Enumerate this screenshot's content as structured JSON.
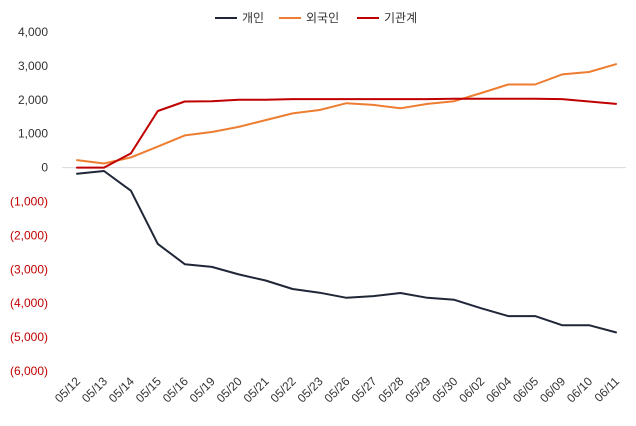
{
  "chart_data": {
    "type": "line",
    "title": "",
    "xlabel": "",
    "ylabel": "",
    "ylim": [
      -6000,
      4000
    ],
    "ytick_step": 1000,
    "y_ticks": [
      {
        "value": 4000,
        "label": "4,000"
      },
      {
        "value": 3000,
        "label": "3,000"
      },
      {
        "value": 2000,
        "label": "2,000"
      },
      {
        "value": 1000,
        "label": "1,000"
      },
      {
        "value": 0,
        "label": "0"
      },
      {
        "value": -1000,
        "label": "(1,000)"
      },
      {
        "value": -2000,
        "label": "(2,000)"
      },
      {
        "value": -3000,
        "label": "(3,000)"
      },
      {
        "value": -4000,
        "label": "(4,000)"
      },
      {
        "value": -5000,
        "label": "(5,000)"
      },
      {
        "value": -6000,
        "label": "(6,000)"
      }
    ],
    "negative_label_color": "#c00000",
    "grid": false,
    "legend_position": "top-center",
    "categories": [
      "05/12",
      "05/13",
      "05/14",
      "05/15",
      "05/16",
      "05/19",
      "05/20",
      "05/21",
      "05/22",
      "05/23",
      "05/26",
      "05/27",
      "05/28",
      "05/29",
      "05/30",
      "06/02",
      "06/04",
      "06/05",
      "06/09",
      "06/10",
      "06/11"
    ],
    "series": [
      {
        "name": "개인",
        "color": "#1f2637",
        "values": [
          -180,
          -100,
          -680,
          -2250,
          -2850,
          -2930,
          -3150,
          -3330,
          -3580,
          -3690,
          -3840,
          -3790,
          -3700,
          -3840,
          -3900,
          -4150,
          -4380,
          -4380,
          -4650,
          -4650,
          -4860
        ]
      },
      {
        "name": "외국인",
        "color": "#ed7d31",
        "values": [
          220,
          120,
          300,
          620,
          950,
          1050,
          1200,
          1400,
          1600,
          1700,
          1900,
          1850,
          1750,
          1880,
          1960,
          2200,
          2450,
          2450,
          2750,
          2820,
          3050
        ]
      },
      {
        "name": "기관계",
        "color": "#c00000",
        "values": [
          0,
          0,
          420,
          1670,
          1950,
          1960,
          2000,
          2000,
          2020,
          2020,
          2020,
          2020,
          2020,
          2020,
          2030,
          2030,
          2030,
          2030,
          2020,
          1950,
          1880
        ]
      }
    ]
  }
}
